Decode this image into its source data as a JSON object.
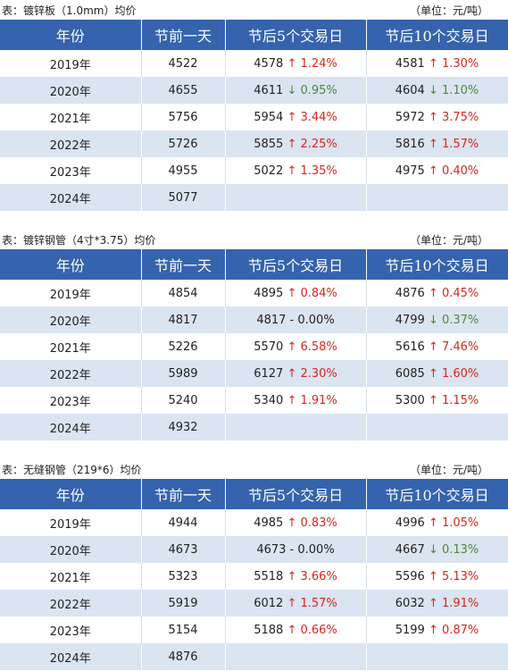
{
  "tables": [
    {
      "title": "表：镀锌板（1.0mm）均价",
      "unit": "（单位：元/吨）",
      "headers": [
        "年份",
        "节前一天",
        "节后5个交易日",
        "节后10个交易日"
      ],
      "rows": [
        [
          "2019年",
          "4522",
          {
            "price": "4578",
            "change": "↑ 1.24%",
            "color": "#d9261c"
          },
          {
            "price": "4581",
            "change": "↑ 1.30%",
            "color": "#d9261c"
          }
        ],
        [
          "2020年",
          "4655",
          {
            "price": "4611",
            "change": "↓ 0.95%",
            "color": "#4a8a3a"
          },
          {
            "price": "4604",
            "change": "↓ 1.10%",
            "color": "#4a8a3a"
          }
        ],
        [
          "2021年",
          "5756",
          {
            "price": "5954",
            "change": "↑ 3.44%",
            "color": "#d9261c"
          },
          {
            "price": "5972",
            "change": "↑ 3.75%",
            "color": "#d9261c"
          }
        ],
        [
          "2022年",
          "5726",
          {
            "price": "5855",
            "change": "↑ 2.25%",
            "color": "#d9261c"
          },
          {
            "price": "5816",
            "change": "↑ 1.57%",
            "color": "#d9261c"
          }
        ],
        [
          "2023年",
          "4955",
          {
            "price": "5022",
            "change": "↑ 1.35%",
            "color": "#d9261c"
          },
          {
            "price": "4975",
            "change": "↑ 0.40%",
            "color": "#d9261c"
          }
        ],
        [
          "2024年",
          "5077"
        ]
      ]
    },
    {
      "title": "表：镀锌钢管（4寸*3.75）均价",
      "unit": "（单位：元/吨）",
      "headers": [
        "年份",
        "节前一天",
        "节后5个交易日",
        "节后10个交易日"
      ],
      "rows": [
        [
          "2019年",
          "4854",
          {
            "price": "4895",
            "change": "↑ 0.84%",
            "color": "#d9261c"
          },
          {
            "price": "4876",
            "change": "↑ 0.45%",
            "color": "#d9261c"
          }
        ],
        [
          "2020年",
          "4817",
          {
            "price": "4817",
            "change": "- 0.00%",
            "color": "#222222"
          },
          {
            "price": "4799",
            "change": "↓ 0.37%",
            "color": "#4a8a3a"
          }
        ],
        [
          "2021年",
          "5226",
          {
            "price": "5570",
            "change": "↑ 6.58%",
            "color": "#d9261c"
          },
          {
            "price": "5616",
            "change": "↑ 7.46%",
            "color": "#d9261c"
          }
        ],
        [
          "2022年",
          "5989",
          {
            "price": "6127",
            "change": "↑ 2.30%",
            "color": "#d9261c"
          },
          {
            "price": "6085",
            "change": "↑ 1.60%",
            "color": "#d9261c"
          }
        ],
        [
          "2023年",
          "5240",
          {
            "price": "5340",
            "change": "↑ 1.91%",
            "color": "#d9261c"
          },
          {
            "price": "5300",
            "change": "↑ 1.15%",
            "color": "#d9261c"
          }
        ],
        [
          "2024年",
          "4932"
        ]
      ]
    },
    {
      "title": "表：无缝钢管（219*6）均价",
      "unit": "（单位：元/吨）",
      "headers": [
        "年份",
        "节前一天",
        "节后5个交易日",
        "节后10个交易日"
      ],
      "rows": [
        [
          "2019年",
          "4944",
          {
            "price": "4985",
            "change": "↑ 0.83%",
            "color": "#d9261c"
          },
          {
            "price": "4996",
            "change": "↑ 1.05%",
            "color": "#d9261c"
          }
        ],
        [
          "2020年",
          "4673",
          {
            "price": "4673",
            "change": "- 0.00%",
            "color": "#222222"
          },
          {
            "price": "4667",
            "change": "↓ 0.13%",
            "color": "#4a8a3a"
          }
        ],
        [
          "2021年",
          "5323",
          {
            "price": "5518",
            "change": "↑ 3.66%",
            "color": "#d9261c"
          },
          {
            "price": "5596",
            "change": "↑ 5.13%",
            "color": "#d9261c"
          }
        ],
        [
          "2022年",
          "5919",
          {
            "price": "6012",
            "change": "↑ 1.57%",
            "color": "#d9261c"
          },
          {
            "price": "6032",
            "change": "↑ 1.91%",
            "color": "#d9261c"
          }
        ],
        [
          "2023年",
          "5154",
          {
            "price": "5188",
            "change": "↑ 0.66%",
            "color": "#d9261c"
          },
          {
            "price": "5199",
            "change": "↑ 0.87%",
            "color": "#d9261c"
          }
        ],
        [
          "2024年",
          "4876"
        ]
      ]
    }
  ]
}
